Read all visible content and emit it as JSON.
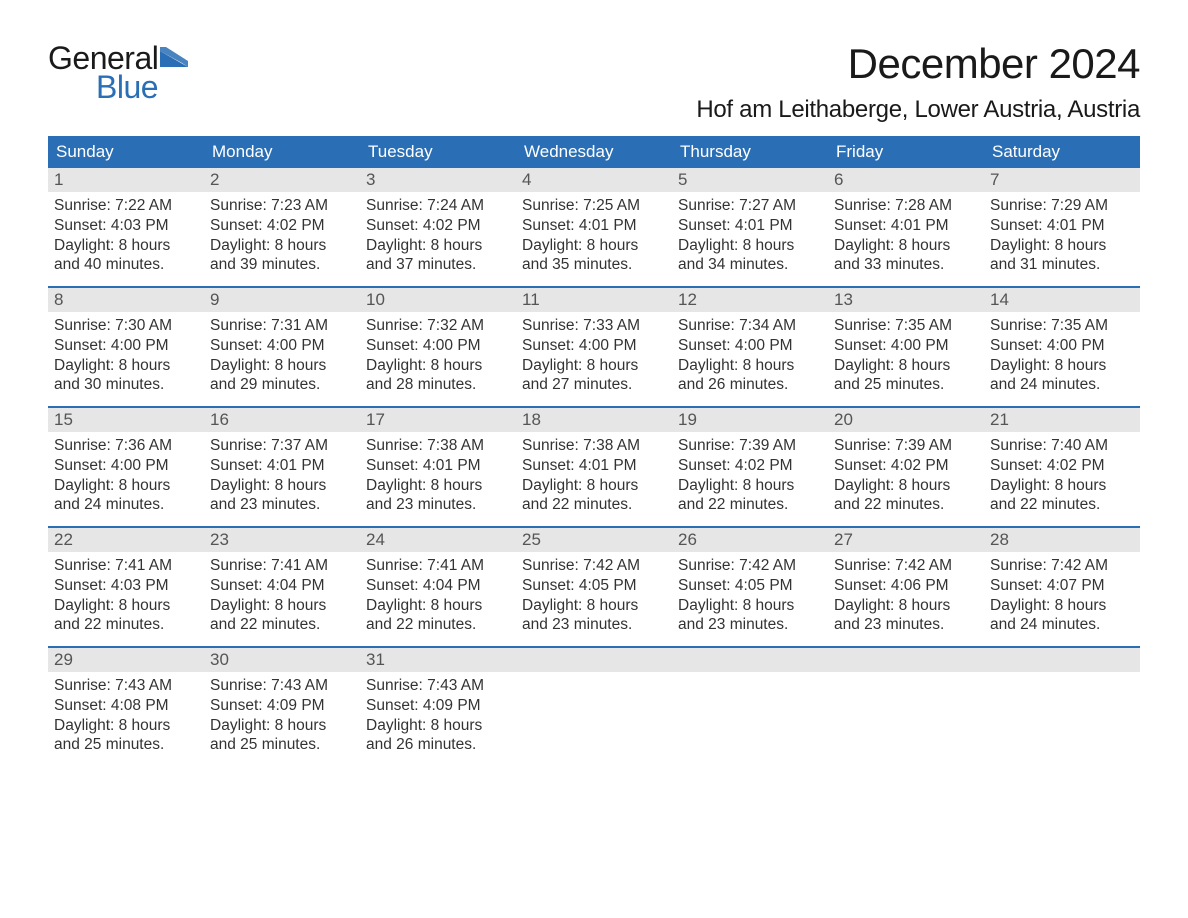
{
  "logo": {
    "general": "General",
    "blue": "Blue",
    "flag_color": "#2a6fb5"
  },
  "title": "December 2024",
  "location": "Hof am Leithaberge, Lower Austria, Austria",
  "colors": {
    "header_bg": "#2a6fb5",
    "header_text": "#ffffff",
    "daynum_bg": "#e6e6e6",
    "daynum_text": "#555555",
    "body_text": "#333333",
    "week_border": "#2a6fb5",
    "background": "#ffffff"
  },
  "typography": {
    "title_fontsize": 42,
    "location_fontsize": 24,
    "header_fontsize": 17,
    "daynum_fontsize": 17,
    "body_fontsize": 15.5,
    "logo_fontsize": 32
  },
  "day_names": [
    "Sunday",
    "Monday",
    "Tuesday",
    "Wednesday",
    "Thursday",
    "Friday",
    "Saturday"
  ],
  "weeks": [
    [
      {
        "day": 1,
        "sunrise": "7:22 AM",
        "sunset": "4:03 PM",
        "daylight_l1": "Daylight: 8 hours",
        "daylight_l2": "and 40 minutes."
      },
      {
        "day": 2,
        "sunrise": "7:23 AM",
        "sunset": "4:02 PM",
        "daylight_l1": "Daylight: 8 hours",
        "daylight_l2": "and 39 minutes."
      },
      {
        "day": 3,
        "sunrise": "7:24 AM",
        "sunset": "4:02 PM",
        "daylight_l1": "Daylight: 8 hours",
        "daylight_l2": "and 37 minutes."
      },
      {
        "day": 4,
        "sunrise": "7:25 AM",
        "sunset": "4:01 PM",
        "daylight_l1": "Daylight: 8 hours",
        "daylight_l2": "and 35 minutes."
      },
      {
        "day": 5,
        "sunrise": "7:27 AM",
        "sunset": "4:01 PM",
        "daylight_l1": "Daylight: 8 hours",
        "daylight_l2": "and 34 minutes."
      },
      {
        "day": 6,
        "sunrise": "7:28 AM",
        "sunset": "4:01 PM",
        "daylight_l1": "Daylight: 8 hours",
        "daylight_l2": "and 33 minutes."
      },
      {
        "day": 7,
        "sunrise": "7:29 AM",
        "sunset": "4:01 PM",
        "daylight_l1": "Daylight: 8 hours",
        "daylight_l2": "and 31 minutes."
      }
    ],
    [
      {
        "day": 8,
        "sunrise": "7:30 AM",
        "sunset": "4:00 PM",
        "daylight_l1": "Daylight: 8 hours",
        "daylight_l2": "and 30 minutes."
      },
      {
        "day": 9,
        "sunrise": "7:31 AM",
        "sunset": "4:00 PM",
        "daylight_l1": "Daylight: 8 hours",
        "daylight_l2": "and 29 minutes."
      },
      {
        "day": 10,
        "sunrise": "7:32 AM",
        "sunset": "4:00 PM",
        "daylight_l1": "Daylight: 8 hours",
        "daylight_l2": "and 28 minutes."
      },
      {
        "day": 11,
        "sunrise": "7:33 AM",
        "sunset": "4:00 PM",
        "daylight_l1": "Daylight: 8 hours",
        "daylight_l2": "and 27 minutes."
      },
      {
        "day": 12,
        "sunrise": "7:34 AM",
        "sunset": "4:00 PM",
        "daylight_l1": "Daylight: 8 hours",
        "daylight_l2": "and 26 minutes."
      },
      {
        "day": 13,
        "sunrise": "7:35 AM",
        "sunset": "4:00 PM",
        "daylight_l1": "Daylight: 8 hours",
        "daylight_l2": "and 25 minutes."
      },
      {
        "day": 14,
        "sunrise": "7:35 AM",
        "sunset": "4:00 PM",
        "daylight_l1": "Daylight: 8 hours",
        "daylight_l2": "and 24 minutes."
      }
    ],
    [
      {
        "day": 15,
        "sunrise": "7:36 AM",
        "sunset": "4:00 PM",
        "daylight_l1": "Daylight: 8 hours",
        "daylight_l2": "and 24 minutes."
      },
      {
        "day": 16,
        "sunrise": "7:37 AM",
        "sunset": "4:01 PM",
        "daylight_l1": "Daylight: 8 hours",
        "daylight_l2": "and 23 minutes."
      },
      {
        "day": 17,
        "sunrise": "7:38 AM",
        "sunset": "4:01 PM",
        "daylight_l1": "Daylight: 8 hours",
        "daylight_l2": "and 23 minutes."
      },
      {
        "day": 18,
        "sunrise": "7:38 AM",
        "sunset": "4:01 PM",
        "daylight_l1": "Daylight: 8 hours",
        "daylight_l2": "and 22 minutes."
      },
      {
        "day": 19,
        "sunrise": "7:39 AM",
        "sunset": "4:02 PM",
        "daylight_l1": "Daylight: 8 hours",
        "daylight_l2": "and 22 minutes."
      },
      {
        "day": 20,
        "sunrise": "7:39 AM",
        "sunset": "4:02 PM",
        "daylight_l1": "Daylight: 8 hours",
        "daylight_l2": "and 22 minutes."
      },
      {
        "day": 21,
        "sunrise": "7:40 AM",
        "sunset": "4:02 PM",
        "daylight_l1": "Daylight: 8 hours",
        "daylight_l2": "and 22 minutes."
      }
    ],
    [
      {
        "day": 22,
        "sunrise": "7:41 AM",
        "sunset": "4:03 PM",
        "daylight_l1": "Daylight: 8 hours",
        "daylight_l2": "and 22 minutes."
      },
      {
        "day": 23,
        "sunrise": "7:41 AM",
        "sunset": "4:04 PM",
        "daylight_l1": "Daylight: 8 hours",
        "daylight_l2": "and 22 minutes."
      },
      {
        "day": 24,
        "sunrise": "7:41 AM",
        "sunset": "4:04 PM",
        "daylight_l1": "Daylight: 8 hours",
        "daylight_l2": "and 22 minutes."
      },
      {
        "day": 25,
        "sunrise": "7:42 AM",
        "sunset": "4:05 PM",
        "daylight_l1": "Daylight: 8 hours",
        "daylight_l2": "and 23 minutes."
      },
      {
        "day": 26,
        "sunrise": "7:42 AM",
        "sunset": "4:05 PM",
        "daylight_l1": "Daylight: 8 hours",
        "daylight_l2": "and 23 minutes."
      },
      {
        "day": 27,
        "sunrise": "7:42 AM",
        "sunset": "4:06 PM",
        "daylight_l1": "Daylight: 8 hours",
        "daylight_l2": "and 23 minutes."
      },
      {
        "day": 28,
        "sunrise": "7:42 AM",
        "sunset": "4:07 PM",
        "daylight_l1": "Daylight: 8 hours",
        "daylight_l2": "and 24 minutes."
      }
    ],
    [
      {
        "day": 29,
        "sunrise": "7:43 AM",
        "sunset": "4:08 PM",
        "daylight_l1": "Daylight: 8 hours",
        "daylight_l2": "and 25 minutes."
      },
      {
        "day": 30,
        "sunrise": "7:43 AM",
        "sunset": "4:09 PM",
        "daylight_l1": "Daylight: 8 hours",
        "daylight_l2": "and 25 minutes."
      },
      {
        "day": 31,
        "sunrise": "7:43 AM",
        "sunset": "4:09 PM",
        "daylight_l1": "Daylight: 8 hours",
        "daylight_l2": "and 26 minutes."
      },
      null,
      null,
      null,
      null
    ]
  ],
  "labels": {
    "sunrise_prefix": "Sunrise: ",
    "sunset_prefix": "Sunset: "
  }
}
